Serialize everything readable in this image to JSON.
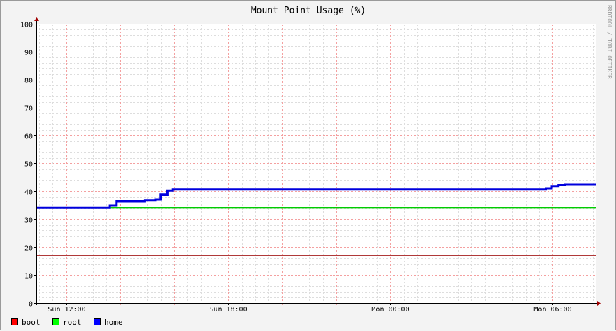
{
  "chart_data": {
    "type": "line",
    "title": "Mount Point Usage (%)",
    "watermark": "RRDTOOL / TOBI OETIKER",
    "ylim": [
      0,
      100
    ],
    "y_ticks": [
      0,
      10,
      20,
      30,
      40,
      50,
      60,
      70,
      80,
      90,
      100
    ],
    "x_range_hours": [
      10.9,
      31.6
    ],
    "x_ticks": [
      {
        "label": "Sun 12:00",
        "hour": 12
      },
      {
        "label": "Sun 18:00",
        "hour": 18
      },
      {
        "label": "Mon 00:00",
        "hour": 24
      },
      {
        "label": "Mon 06:00",
        "hour": 30
      }
    ],
    "grid": true,
    "legend_position": "bottom-left",
    "series": [
      {
        "name": "boot",
        "color": "#a51d1d",
        "legend_color": "#ff0000",
        "width": 1,
        "points": [
          [
            10.9,
            17.1
          ],
          [
            31.6,
            17.1
          ]
        ]
      },
      {
        "name": "root",
        "color": "#00cc00",
        "legend_color": "#00ff00",
        "width": 1.5,
        "points": [
          [
            10.9,
            34.1
          ],
          [
            31.6,
            34.1
          ]
        ]
      },
      {
        "name": "home",
        "color": "#0000dd",
        "legend_color": "#0000ff",
        "width": 3,
        "points": [
          [
            10.9,
            34.2
          ],
          [
            13.62,
            34.2
          ],
          [
            13.62,
            35.0
          ],
          [
            13.87,
            35.0
          ],
          [
            13.87,
            36.5
          ],
          [
            14.92,
            36.5
          ],
          [
            14.92,
            36.8
          ],
          [
            15.3,
            36.8
          ],
          [
            15.3,
            37.0
          ],
          [
            15.5,
            37.0
          ],
          [
            15.5,
            38.8
          ],
          [
            15.75,
            38.8
          ],
          [
            15.75,
            40.2
          ],
          [
            15.95,
            40.2
          ],
          [
            15.95,
            40.8
          ],
          [
            29.75,
            40.8
          ],
          [
            29.75,
            41.0
          ],
          [
            29.97,
            41.0
          ],
          [
            29.97,
            41.8
          ],
          [
            30.22,
            41.8
          ],
          [
            30.22,
            42.2
          ],
          [
            30.45,
            42.2
          ],
          [
            30.45,
            42.5
          ],
          [
            31.6,
            42.5
          ]
        ]
      }
    ]
  }
}
